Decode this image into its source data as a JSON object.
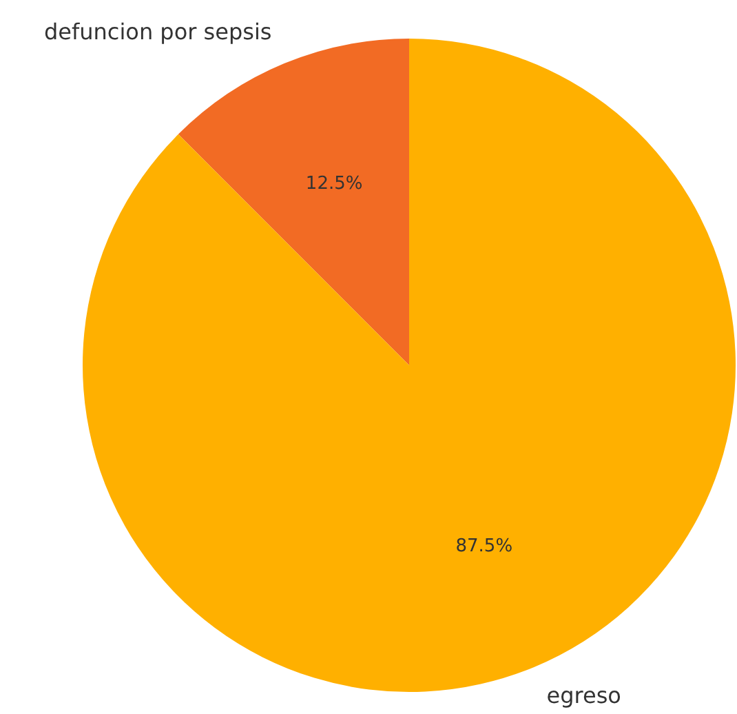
{
  "chart_data": {
    "type": "pie",
    "categories": [
      "defuncion por sepsis",
      "egreso"
    ],
    "values": [
      12.5,
      87.5
    ],
    "colors": [
      "#f26b24",
      "#ffb000"
    ],
    "value_labels": [
      "12.5%",
      "87.5%"
    ],
    "legend": false
  }
}
